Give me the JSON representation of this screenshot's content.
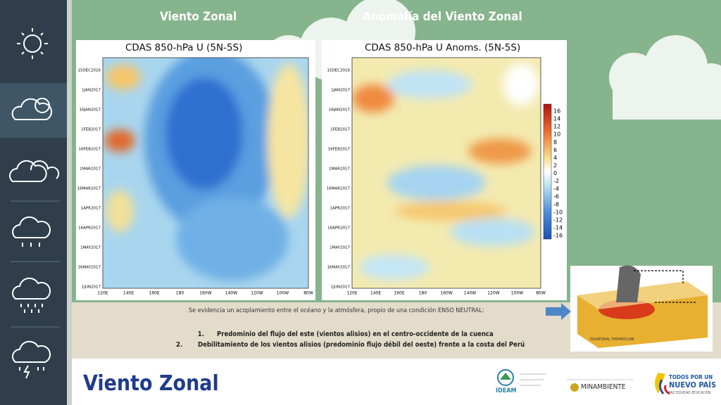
{
  "slide": {
    "headings": [
      "Viento Zonal",
      "Anomalía del Viento Zonal"
    ],
    "plots": [
      {
        "title": "CDAS 850-hPa U (5N-5S)"
      },
      {
        "title": "CDAS 850-hPa U Anoms. (5N-5S)"
      }
    ],
    "dates": [
      "15DEC2016",
      "1JAN2017",
      "16JAN2017",
      "1FEB2017",
      "16FEB2017",
      "1MAR2017",
      "16MAR2017",
      "1APR2017",
      "16APR2017",
      "1MAY2017",
      "16MAY2017",
      "1JUN2017"
    ],
    "longitudes": [
      "120E",
      "140E",
      "160E",
      "180",
      "160W",
      "140W",
      "120W",
      "100W",
      "80W"
    ],
    "colorbar": [
      "16",
      "14",
      "12",
      "10",
      "8",
      "6",
      "4",
      "2",
      "0",
      "-2",
      "-4",
      "-6",
      "-8",
      "-10",
      "-12",
      "-14",
      "-16"
    ],
    "intro": "Se evidencia un acoplamiento entre el océano y la atmósfera, propio de una condición ENSO NEUTRAL:",
    "list": [
      {
        "number": "1.",
        "text": "Predominio del flujo del este (vientos alisios) en el centro-occidente de la cuenca"
      },
      {
        "number": "2.",
        "text": "Debilitamiento de los vientos alisios (predominio flujo débil del oeste) frente a la costa del Perú"
      }
    ],
    "inset_label": "EQUATORIAL THERMOCLINE",
    "footer_title": "Viento Zonal",
    "logos": {
      "ideam": "IDEAM",
      "minambiente": "MINAMBIENTE",
      "gov_line1": "TODOS POR UN",
      "gov_line2": "NUEVO PAÍS",
      "gov_line3": "PAZ EQUIDAD EDUCACIÓN"
    }
  }
}
